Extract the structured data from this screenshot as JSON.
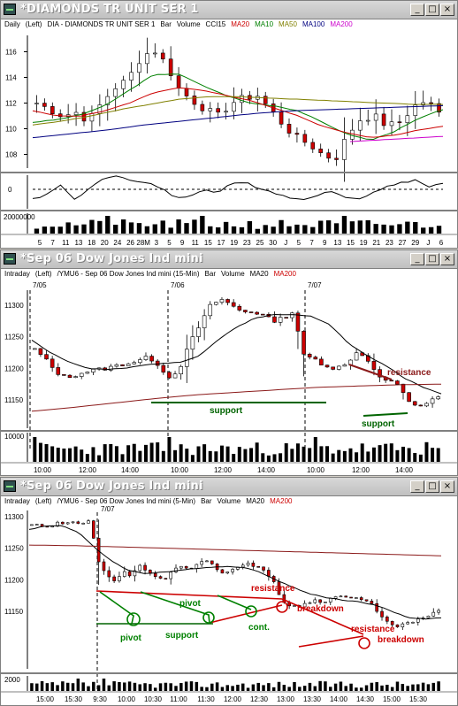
{
  "windows": [
    {
      "title": "*DIAMONDS TR UNIT SER 1",
      "status": [
        "Daily",
        "(Left)",
        "DIA - DIAMONDS TR UNIT SER 1",
        "Bar",
        "Volume",
        "CCI15"
      ],
      "status_colored": [
        {
          "text": "MA20",
          "color": "#cc0000"
        },
        {
          "text": "MA10",
          "color": "#008000"
        },
        {
          "text": "MA50",
          "color": "#808000"
        },
        {
          "text": "MA100",
          "color": "#000080"
        },
        {
          "text": "MA200",
          "color": "#cc00cc"
        }
      ],
      "price_labels": [
        "116",
        "114",
        "112",
        "110",
        "108"
      ],
      "cci_label": "0",
      "volume_label": "20000000",
      "date_labels": [
        "5",
        "7",
        "11",
        "13",
        "18",
        "20",
        "24",
        "26",
        "28M",
        "3",
        "5",
        "9",
        "11",
        "15",
        "17",
        "19",
        "23",
        "25",
        "30",
        "J",
        "5",
        "7",
        "9",
        "13",
        "15",
        "19",
        "21",
        "23",
        "27",
        "29",
        "J",
        "6"
      ]
    },
    {
      "title": "*Sep 06  Dow Jones Ind mini",
      "status": [
        "Intraday",
        "(Left)",
        "/YMU6 - Sep 06  Dow Jones Ind mini (15-Min)",
        "Bar",
        "Volume",
        "MA20"
      ],
      "status_colored": [
        {
          "text": "MA200",
          "color": "#cc0000"
        }
      ],
      "session_labels": [
        "7/05",
        "7/06",
        "7/07"
      ],
      "price_labels": [
        "11300",
        "11250",
        "11200",
        "11150"
      ],
      "volume_label": "10000",
      "time_labels": [
        "10:00",
        "12:00",
        "14:00",
        "10:00",
        "12:00",
        "14:00",
        "10:00",
        "12:00",
        "14:00"
      ],
      "annotations": {
        "resistance": "resistance",
        "support_left": "support",
        "support_right": "support"
      }
    },
    {
      "title": "*Sep 06  Dow Jones Ind mini",
      "status": [
        "Intraday",
        "(Left)",
        "/YMU6 - Sep 06  Dow Jones Ind mini (5-Min)",
        "Bar",
        "Volume",
        "MA20"
      ],
      "status_colored": [
        {
          "text": "MA200",
          "color": "#cc0000"
        }
      ],
      "session_label": "7/07",
      "price_labels": [
        "11300",
        "11250",
        "11200",
        "11150"
      ],
      "volume_label": "2000",
      "time_labels": [
        "15:00",
        "15:30",
        "9:30",
        "10:00",
        "10:30",
        "11:00",
        "11:30",
        "12:00",
        "12:30",
        "13:00",
        "13:30",
        "14:00",
        "14:30",
        "15:00",
        "15:30"
      ],
      "annotations": {
        "pivot_top": "pivot",
        "pivot_bottom": "pivot",
        "support": "support",
        "cont": "cont.",
        "resistance_top": "resistance",
        "breakdown_1": "breakdown",
        "resistance_2": "resistance",
        "breakdown_2": "breakdown"
      }
    }
  ],
  "window_buttons": {
    "minimize": "_",
    "maximize": "□",
    "close": "×"
  },
  "colors": {
    "title_gradient": "#c0c0c0",
    "support": "#006400",
    "resistance": "#8b1a1a",
    "breakdown": "#cc0000",
    "pivot": "#008000",
    "bull_candle": "#ffffff",
    "bear_candle": "#cc0000"
  }
}
